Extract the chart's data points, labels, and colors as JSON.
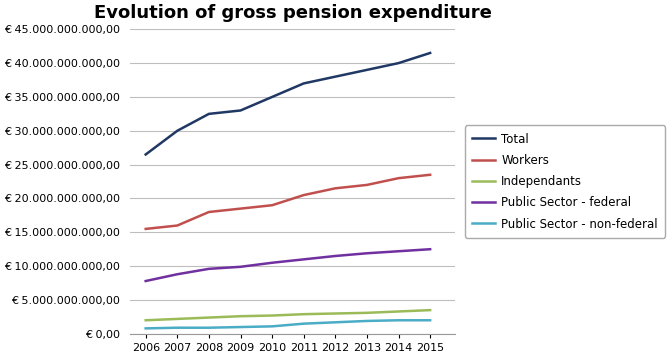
{
  "title": "Evolution of gross pension expenditure",
  "years": [
    2006,
    2007,
    2008,
    2009,
    2010,
    2011,
    2012,
    2013,
    2014,
    2015
  ],
  "series": {
    "Total": {
      "values": [
        26500000000,
        30000000000,
        32500000000,
        33000000000,
        35000000000,
        37000000000,
        38000000000,
        39000000000,
        40000000000,
        41500000000
      ],
      "color": "#1F3864",
      "linewidth": 1.8
    },
    "Workers": {
      "values": [
        15500000000,
        16000000000,
        18000000000,
        18500000000,
        19000000000,
        20500000000,
        21500000000,
        22000000000,
        23000000000,
        23500000000
      ],
      "color": "#C0504D",
      "linewidth": 1.8
    },
    "Independants": {
      "values": [
        2000000000,
        2200000000,
        2400000000,
        2600000000,
        2700000000,
        2900000000,
        3000000000,
        3100000000,
        3300000000,
        3500000000
      ],
      "color": "#9BBB59",
      "linewidth": 1.8
    },
    "Public Sector - federal": {
      "values": [
        7800000000,
        8800000000,
        9600000000,
        9900000000,
        10500000000,
        11000000000,
        11500000000,
        11900000000,
        12200000000,
        12500000000
      ],
      "color": "#7030A0",
      "linewidth": 1.8
    },
    "Public Sector - non-federal": {
      "values": [
        800000000,
        900000000,
        900000000,
        1000000000,
        1100000000,
        1500000000,
        1700000000,
        1900000000,
        2000000000,
        2000000000
      ],
      "color": "#4BACC6",
      "linewidth": 1.8
    }
  },
  "ylim": [
    0,
    45000000000
  ],
  "ytick_step": 5000000000,
  "background_color": "#FFFFFF",
  "grid_color": "#BEBEBE",
  "legend_fontsize": 8.5,
  "title_fontsize": 13,
  "tick_fontsize": 8,
  "xlabel_fontsize": 9
}
